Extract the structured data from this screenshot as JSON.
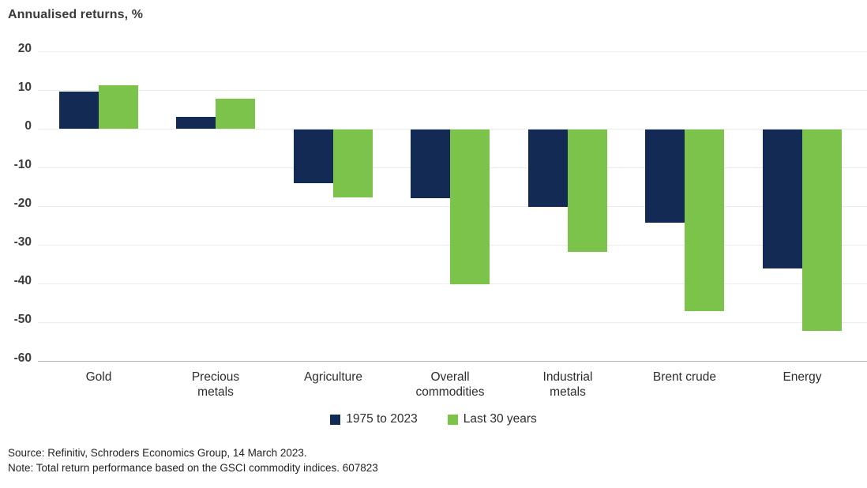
{
  "chart_data": {
    "type": "bar",
    "title": "Annualised returns, %",
    "categories": [
      "Gold",
      "Precious metals",
      "Agriculture",
      "Overall commodities",
      "Industrial metals",
      "Brent crude",
      "Energy"
    ],
    "series": [
      {
        "name": "1975 to 2023",
        "color": "#132a54",
        "values": [
          9.5,
          3.0,
          -13.8,
          -17.8,
          -20.0,
          -24.0,
          -36.0
        ]
      },
      {
        "name": "Last 30 years",
        "color": "#7cc34c",
        "values": [
          11.3,
          7.7,
          -17.6,
          -40.0,
          -31.6,
          -47.0,
          -52.0
        ]
      }
    ],
    "ylabel": "Annualised returns, %",
    "ylim": [
      -60,
      20
    ],
    "yticks": [
      20,
      10,
      0,
      -10,
      -20,
      -30,
      -40,
      -50,
      -60
    ],
    "grid": true,
    "legend_position": "bottom"
  },
  "footer": {
    "source_line": "Source: Refinitiv, Schroders Economics Group, 14 March 2023.",
    "note_line": "Note: Total return performance based on the GSCI commodity indices. 607823"
  },
  "colors": {
    "series_1975": "#132a54",
    "series_last30": "#7cc34c",
    "gridline": "#ececec",
    "axis_baseline": "#b3b3b3",
    "text": "#2d2d2d"
  }
}
